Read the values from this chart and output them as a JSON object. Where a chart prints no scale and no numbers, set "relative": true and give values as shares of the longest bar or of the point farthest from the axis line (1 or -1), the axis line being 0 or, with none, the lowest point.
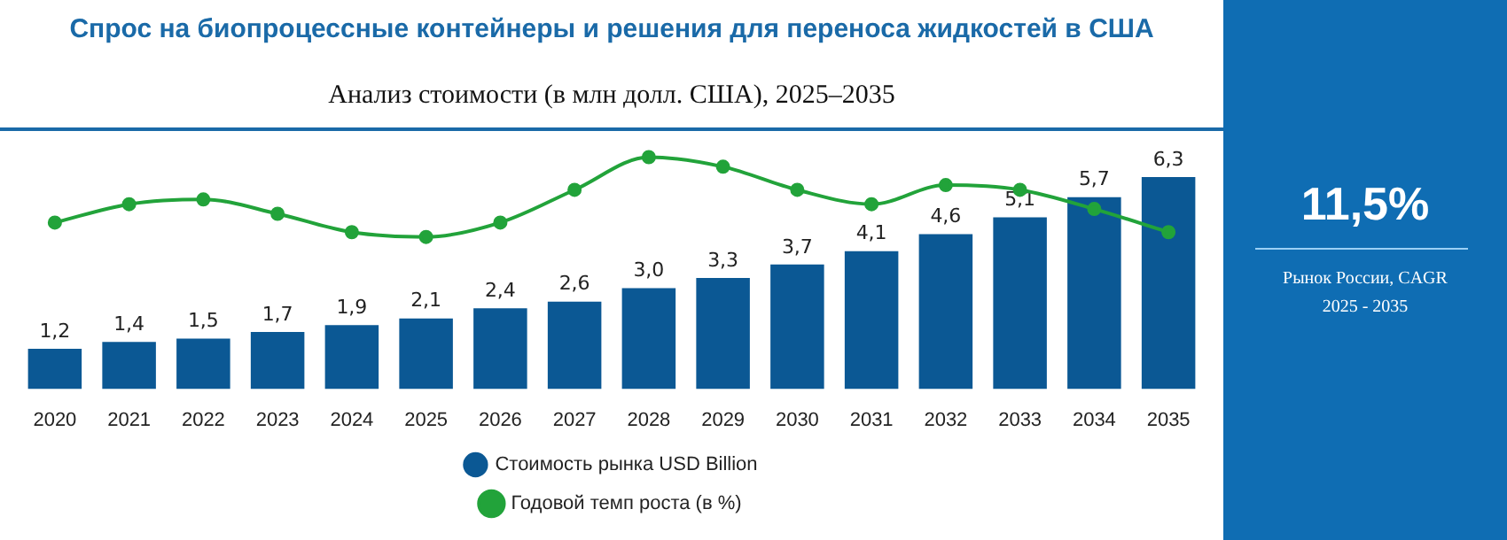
{
  "chart_data": [
    {
      "type": "bar",
      "title": "Спрос на биопроцессные контейнеры и решения для переноса жидкостей в США",
      "subtitle": "Анализ стоимости (в млн долл. США), 2025–2035",
      "categories": [
        "2020",
        "2021",
        "2022",
        "2023",
        "2024",
        "2025",
        "2026",
        "2027",
        "2028",
        "2029",
        "2030",
        "2031",
        "2032",
        "2033",
        "2034",
        "2035"
      ],
      "series": [
        {
          "name": "Стоимость рынка USD Billion",
          "color": "#0b5894",
          "values": [
            1.2,
            1.4,
            1.5,
            1.7,
            1.9,
            2.1,
            2.4,
            2.6,
            3.0,
            3.3,
            3.7,
            4.1,
            4.6,
            5.1,
            5.7,
            6.3
          ],
          "value_labels": [
            "1,2",
            "1,4",
            "1,5",
            "1,7",
            "1,9",
            "2,1",
            "2,4",
            "2,6",
            "3,0",
            "3,3",
            "3,7",
            "4,1",
            "4,6",
            "5,1",
            "5,7",
            "6,3"
          ]
        }
      ],
      "legend": "bottom"
    },
    {
      "type": "line",
      "relative": true,
      "categories": [
        null,
        null,
        null,
        null,
        null,
        null,
        null,
        null,
        null,
        null,
        null,
        null,
        null,
        null,
        null,
        null
      ],
      "series": [
        {
          "name": "Годовой темп роста (в %)",
          "color": "#22a33a",
          "values": [
            0.18,
            0.41,
            0.47,
            0.29,
            0.06,
            0,
            0.18,
            0.59,
            1,
            0.88,
            0.59,
            0.41,
            0.65,
            0.59,
            0.35,
            0.06
          ]
        }
      ],
      "marker": "circle",
      "legend": "bottom"
    },
    {
      "type": "other",
      "annotations": [
        "11,5%",
        "Рынок России, CAGR 2025 - 2035"
      ]
    }
  ]
}
